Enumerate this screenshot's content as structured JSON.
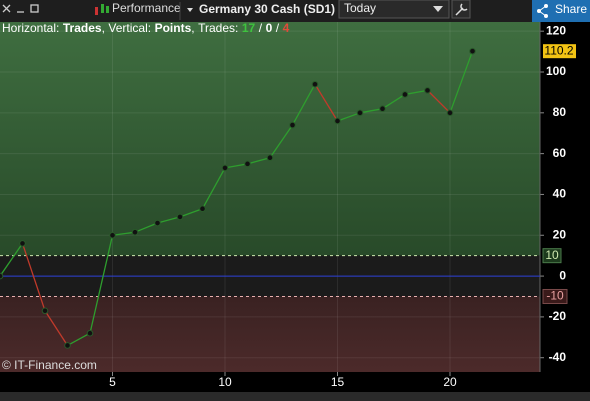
{
  "toolbar": {
    "chart_name": "Performance",
    "instrument": "Germany 30 Cash (SD1)",
    "period": "Today",
    "share": "Share"
  },
  "chart_data": {
    "type": "line",
    "header": {
      "horizontal_label": "Horizontal:",
      "x_label": "Trades",
      "comma": ",",
      "vertical_label": "Vertical:",
      "y_label": "Points",
      "count_label": "Trades:",
      "won": 17,
      "slash": "/",
      "flat": 0,
      "lost": 4
    },
    "watermark": "© IT-Finance.com",
    "x": [
      0,
      1,
      2,
      3,
      4,
      5,
      6,
      7,
      8,
      9,
      10,
      11,
      12,
      13,
      14,
      15,
      16,
      17,
      18,
      19,
      20,
      21
    ],
    "series": [
      {
        "name": "Points",
        "up_color": "#2e9e2e",
        "down_color": "#c03a2b",
        "values": [
          0,
          16,
          -17,
          -34,
          -28,
          20,
          21.5,
          26,
          29,
          33,
          53,
          55,
          58,
          74,
          94,
          76,
          80,
          82,
          89,
          91,
          80,
          110.2
        ]
      }
    ],
    "last_value_label": "110.2",
    "upper_band": 10,
    "lower_band": -10,
    "zero_line": 0,
    "xlim": [
      0,
      24
    ],
    "xticks": [
      5,
      10,
      15,
      20
    ],
    "ylim": [
      -47,
      124.5
    ],
    "yticks": [
      -40,
      -20,
      0,
      20,
      40,
      60,
      80,
      100,
      120
    ],
    "grid": true
  }
}
